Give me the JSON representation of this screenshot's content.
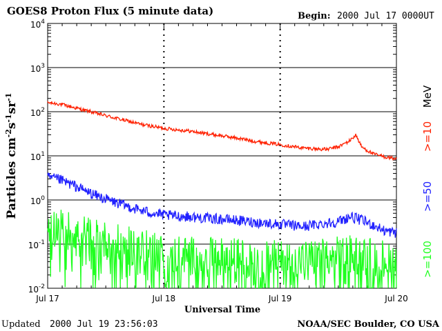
{
  "chart_data": {
    "type": "line",
    "title": "GOES8 Proton Flux (5 minute data)",
    "begin_label": "Begin:",
    "begin_value": "2000 Jul 17 0000UT",
    "xlabel": "Universal Time",
    "ylabel_base": "Particles cm",
    "ylabel_units": [
      "-2",
      "s",
      "-1",
      "sr",
      "-1"
    ],
    "y_scale": "log",
    "ylim": [
      0.01,
      10000
    ],
    "xlim_days": [
      0,
      3
    ],
    "x_ticks": [
      "Jul 17",
      "Jul 18",
      "Jul 19",
      "Jul 20"
    ],
    "y_ticks": [
      {
        "base": "10",
        "exp": "4"
      },
      {
        "base": "10",
        "exp": "3"
      },
      {
        "base": "10",
        "exp": "2"
      },
      {
        "base": "10",
        "exp": "1"
      },
      {
        "base": "10",
        "exp": "0"
      },
      {
        "base": "10",
        "exp": "-1"
      },
      {
        "base": "10",
        "exp": "-2"
      }
    ],
    "energy_unit": "MeV",
    "series": [
      {
        "name": ">=10",
        "color": "#ff2000",
        "x_days": [
          0,
          0.1,
          0.25,
          0.4,
          0.6,
          0.8,
          1.0,
          1.2,
          1.4,
          1.6,
          1.8,
          2.0,
          2.2,
          2.4,
          2.5,
          2.6,
          2.65,
          2.7,
          2.8,
          2.9,
          3.0
        ],
        "values": [
          160,
          150,
          120,
          95,
          70,
          52,
          42,
          37,
          31,
          26,
          21,
          18,
          15,
          14,
          16,
          22,
          30,
          16,
          11,
          9.5,
          8.5
        ]
      },
      {
        "name": ">=50",
        "color": "#2020ff",
        "x_days": [
          0,
          0.1,
          0.25,
          0.4,
          0.6,
          0.8,
          1.0,
          1.2,
          1.4,
          1.6,
          1.8,
          2.0,
          2.2,
          2.4,
          2.5,
          2.6,
          2.7,
          2.8,
          2.9,
          3.0
        ],
        "values": [
          3.2,
          2.9,
          2.0,
          1.3,
          0.85,
          0.58,
          0.45,
          0.42,
          0.38,
          0.35,
          0.31,
          0.28,
          0.25,
          0.3,
          0.32,
          0.42,
          0.35,
          0.27,
          0.2,
          0.18
        ]
      },
      {
        "name": ">=100",
        "color": "#20ff20",
        "x_days": [
          0,
          0.1,
          0.25,
          0.4,
          0.6,
          0.8,
          1.0,
          1.2,
          1.4,
          1.6,
          1.8,
          2.0,
          2.2,
          2.4,
          2.6,
          2.8,
          3.0
        ],
        "values": [
          0.25,
          0.24,
          0.18,
          0.14,
          0.1,
          0.08,
          0.06,
          0.055,
          0.05,
          0.05,
          0.045,
          0.045,
          0.045,
          0.05,
          0.06,
          0.05,
          0.045
        ]
      }
    ]
  },
  "footer": {
    "updated_label": "Updated",
    "updated_value": "2000 Jul 19 23:56:03",
    "credit": "NOAA/SEC Boulder, CO USA"
  }
}
